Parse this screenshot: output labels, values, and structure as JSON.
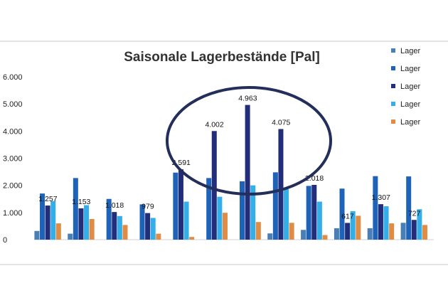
{
  "chart_data": {
    "type": "bar",
    "title": "Saisonale Lagerbestände [Pal]",
    "xlabel": "",
    "ylabel": "",
    "ylim": [
      0,
      6000
    ],
    "yticks": [
      "0",
      "1.000",
      "2.000",
      "3.000",
      "4.000",
      "5.000",
      "6.000"
    ],
    "grid": false,
    "legend_position": "right",
    "categories": [
      "",
      "",
      "",
      "",
      "",
      "",
      "",
      "",
      "",
      "",
      "",
      ""
    ],
    "series": [
      {
        "name": "Lager",
        "color": "#4a7fb5",
        "values": [
          320,
          220,
          0,
          0,
          0,
          0,
          0,
          230,
          360,
          420,
          420,
          620
        ]
      },
      {
        "name": "Lager",
        "color": "#1f63b8",
        "values": [
          1700,
          2270,
          1500,
          1300,
          2470,
          2270,
          2150,
          2480,
          1980,
          1880,
          2340,
          2330
        ]
      },
      {
        "name": "Lager",
        "color": "#232e7a",
        "values": [
          1257,
          1153,
          1018,
          979,
          2591,
          4002,
          4963,
          4075,
          2018,
          617,
          1307,
          727
        ]
      },
      {
        "name": "Lager",
        "color": "#33aee8",
        "values": [
          1420,
          1270,
          870,
          800,
          1400,
          1580,
          2000,
          1860,
          1400,
          1050,
          1230,
          1120
        ]
      },
      {
        "name": "Lager",
        "color": "#e08c45",
        "values": [
          600,
          760,
          540,
          220,
          100,
          990,
          650,
          620,
          170,
          880,
          600,
          540
        ]
      }
    ],
    "data_labels": [
      "1.257",
      "1.153",
      "1.018",
      "979",
      "2.591",
      "4.002",
      "4.963",
      "4.075",
      "2.018",
      "617",
      "1.307",
      "727"
    ],
    "labeled_series_index": 2,
    "annotation": {
      "type": "ellipse",
      "color": "#232e5a"
    }
  }
}
